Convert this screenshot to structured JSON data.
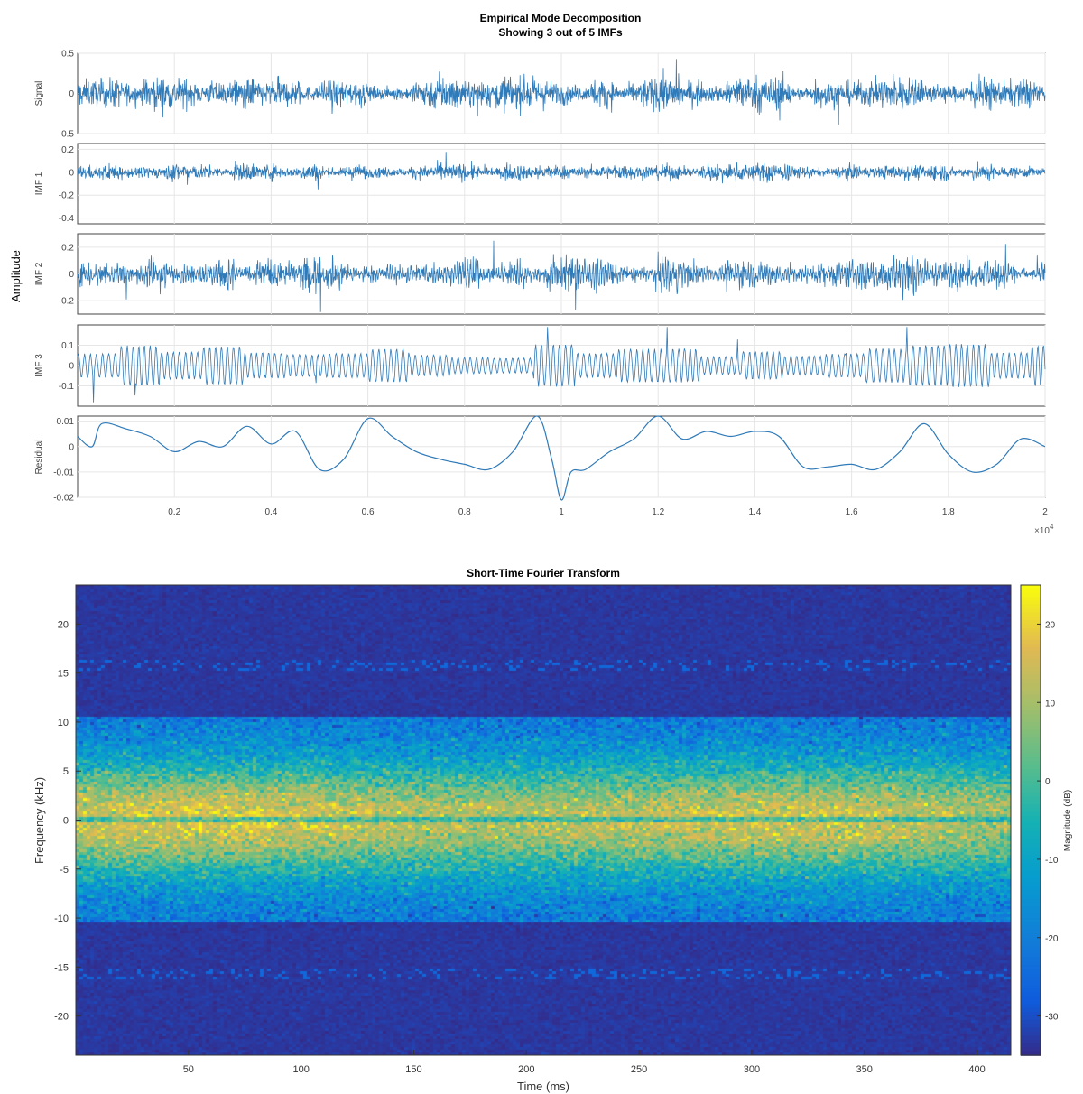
{
  "chart_data": [
    {
      "type": "line",
      "title": "Empirical Mode Decomposition",
      "subtitle": "Showing 3 out of 5 IMFs",
      "ylabel": "Amplitude",
      "xlim": [
        0,
        20000
      ],
      "x_ticks": [
        0.2,
        0.4,
        0.6,
        0.8,
        1,
        1.2,
        1.4,
        1.6,
        1.8,
        2
      ],
      "x_tick_labels": [
        "0.2",
        "0.4",
        "0.6",
        "0.8",
        "1",
        "1.2",
        "1.4",
        "1.6",
        "1.8",
        "2"
      ],
      "x_exponent_label": "×10",
      "x_exponent_power": "4",
      "grid": true,
      "line_color": "#2f7ab8",
      "series": [
        {
          "name": "Signal",
          "ylim": [
            -0.5,
            0.5
          ],
          "yticks": [
            0.5,
            0,
            -0.5
          ],
          "ytick_labels": [
            "0.5",
            "0",
            "-0.5"
          ],
          "amplitude": 0.16,
          "kind": "noise"
        },
        {
          "name": "IMF 1",
          "ylim": [
            -0.45,
            0.25
          ],
          "yticks": [
            0.2,
            0,
            -0.2,
            -0.4
          ],
          "ytick_labels": [
            "0.2",
            "0",
            "-0.2",
            "-0.4"
          ],
          "amplitude": 0.06,
          "kind": "noise"
        },
        {
          "name": "IMF 2",
          "ylim": [
            -0.3,
            0.3
          ],
          "yticks": [
            0.2,
            0,
            -0.2
          ],
          "ytick_labels": [
            "0.2",
            "0",
            "-0.2"
          ],
          "amplitude": 0.09,
          "kind": "bursty"
        },
        {
          "name": "IMF 3",
          "ylim": [
            -0.2,
            0.2
          ],
          "yticks": [
            0.1,
            0,
            -0.1
          ],
          "ytick_labels": [
            "0.1",
            "0",
            "-0.1"
          ],
          "amplitude": 0.08,
          "kind": "oscillation"
        },
        {
          "name": "Residual",
          "ylim": [
            -0.02,
            0.012
          ],
          "yticks": [
            0.01,
            0,
            -0.01,
            -0.02
          ],
          "ytick_labels": [
            "0.01",
            "0",
            "-0.01",
            "-0.02"
          ],
          "kind": "smooth",
          "x": [
            0,
            300,
            500,
            1000,
            1500,
            2000,
            2500,
            3000,
            3500,
            4000,
            4500,
            5000,
            5500,
            6000,
            6500,
            7000,
            7500,
            8000,
            8500,
            9000,
            9500,
            9800,
            10000,
            10200,
            10500,
            11000,
            11500,
            12000,
            12500,
            13000,
            13500,
            14000,
            14500,
            15000,
            15500,
            16000,
            16500,
            17000,
            17500,
            18000,
            18500,
            19000,
            19500,
            20000
          ],
          "values": [
            0.004,
            0.0,
            0.009,
            0.007,
            0.004,
            -0.002,
            0.002,
            0.0,
            0.008,
            0.001,
            0.006,
            -0.009,
            -0.005,
            0.011,
            0.004,
            -0.002,
            -0.005,
            -0.007,
            -0.009,
            -0.002,
            0.012,
            -0.005,
            -0.021,
            -0.01,
            -0.009,
            -0.002,
            0.003,
            0.012,
            0.003,
            0.006,
            0.004,
            0.006,
            0.004,
            -0.008,
            -0.008,
            -0.007,
            -0.009,
            -0.002,
            0.009,
            -0.003,
            -0.01,
            -0.007,
            0.003,
            0.0
          ]
        }
      ]
    },
    {
      "type": "heatmap",
      "title": "Short-Time Fourier Transform",
      "xlabel": "Time (ms)",
      "ylabel": "Frequency (kHz)",
      "xlim": [
        0,
        415
      ],
      "ylim": [
        -24,
        24
      ],
      "xticks": [
        50,
        100,
        150,
        200,
        250,
        300,
        350,
        400
      ],
      "xtick_labels": [
        "50",
        "100",
        "150",
        "200",
        "250",
        "300",
        "350",
        "400"
      ],
      "yticks": [
        20,
        15,
        10,
        5,
        0,
        -5,
        -10,
        -15,
        -20
      ],
      "ytick_labels": [
        "20",
        "15",
        "10",
        "5",
        "0",
        "-5",
        "-10",
        "-15",
        "-20"
      ],
      "colorbar": {
        "label": "Magnitude (dB)",
        "range": [
          -35,
          25
        ],
        "ticks": [
          20,
          10,
          0,
          -10,
          -20,
          -30
        ],
        "tick_labels": [
          "20",
          "10",
          "0",
          "-10",
          "-20",
          "-30"
        ],
        "colormap": "parula"
      },
      "band": {
        "center_db": 18,
        "floor_db": -33,
        "edge_khz": 10.5
      }
    }
  ]
}
